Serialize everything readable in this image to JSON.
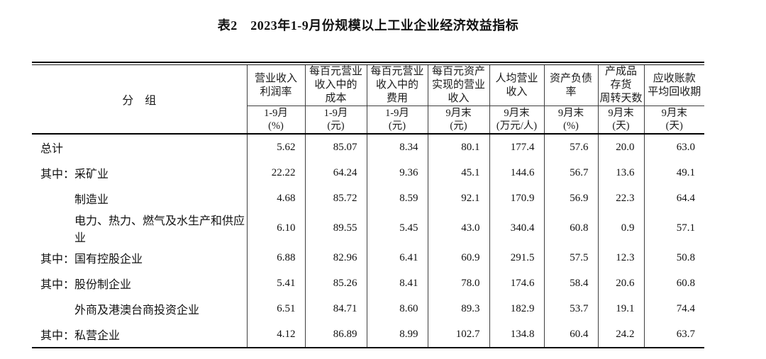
{
  "title": "表2　2023年1-9月份规模以上工业企业经济效益指标",
  "table": {
    "group_header": "分　组",
    "columns": [
      {
        "name": "营业收入\n利润率",
        "period": "1-9月\n(%)"
      },
      {
        "name": "每百元营业\n收入中的\n成本",
        "period": "1-9月\n(元)"
      },
      {
        "name": "每百元营业\n收入中的\n费用",
        "period": "1-9月\n(元)"
      },
      {
        "name": "每百元资产\n实现的营业\n收入",
        "period": "9月末\n(元)"
      },
      {
        "name": "人均营业\n收入",
        "period": "9月末\n(万元/人)"
      },
      {
        "name": "资产负债\n率",
        "period": "9月末\n(%)"
      },
      {
        "name": "产成品\n存货\n周转天数",
        "period": "9月末\n(天)"
      },
      {
        "name": "应收账款\n平均回收期",
        "period": "9月末\n(天)"
      }
    ],
    "rows": [
      {
        "label": "总计",
        "indent": 0,
        "values": [
          "5.62",
          "85.07",
          "8.34",
          "80.1",
          "177.4",
          "57.6",
          "20.0",
          "63.0"
        ]
      },
      {
        "label": "其中：采矿业",
        "indent": 0,
        "values": [
          "22.22",
          "64.24",
          "9.36",
          "45.1",
          "144.6",
          "56.7",
          "13.6",
          "49.1"
        ]
      },
      {
        "label": "制造业",
        "indent": 1,
        "values": [
          "4.68",
          "85.72",
          "8.59",
          "92.1",
          "170.9",
          "56.9",
          "22.3",
          "64.4"
        ]
      },
      {
        "label": "电力、热力、燃气及水生产和供应业",
        "indent": 1,
        "values": [
          "6.10",
          "89.55",
          "5.45",
          "43.0",
          "340.4",
          "60.8",
          "0.9",
          "57.1"
        ]
      },
      {
        "label": "其中：国有控股企业",
        "indent": 0,
        "values": [
          "6.88",
          "82.96",
          "6.41",
          "60.9",
          "291.5",
          "57.5",
          "12.3",
          "50.8"
        ]
      },
      {
        "label": "其中：股份制企业",
        "indent": 0,
        "values": [
          "5.41",
          "85.26",
          "8.41",
          "78.0",
          "174.6",
          "58.4",
          "20.6",
          "60.8"
        ]
      },
      {
        "label": "外商及港澳台商投资企业",
        "indent": 1,
        "values": [
          "6.51",
          "84.71",
          "8.60",
          "89.3",
          "182.9",
          "53.7",
          "19.1",
          "74.4"
        ]
      },
      {
        "label": "其中：私营企业",
        "indent": 0,
        "values": [
          "4.12",
          "86.89",
          "8.99",
          "102.7",
          "134.8",
          "60.4",
          "24.2",
          "63.7"
        ]
      }
    ],
    "colors": {
      "text": "#1a1a1a",
      "thin_rule": "#3f3f3f",
      "thick_rule": "#000000",
      "background": "#ffffff"
    }
  }
}
